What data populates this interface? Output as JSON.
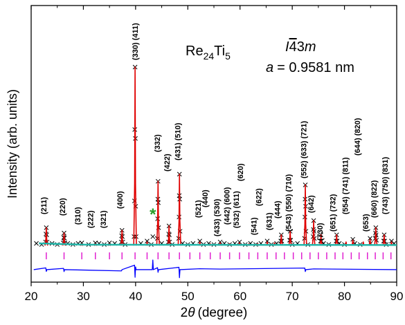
{
  "chart_data": {
    "type": "rietveld",
    "formula": [
      "Re",
      "24",
      "Ti",
      "5"
    ],
    "space_group": [
      "I",
      "4",
      "3",
      "m"
    ],
    "lattice": [
      "a",
      "= 0.9581 nm"
    ],
    "xlabel": [
      "2",
      "θ",
      "(degree)"
    ],
    "ylabel": "Intensity (arb. units)",
    "xlim": [
      20,
      90
    ],
    "ylim": [
      -20.5,
      134.5
    ],
    "xticks": [
      20,
      30,
      40,
      50,
      60,
      70,
      80,
      90
    ],
    "xminorticks": [
      25,
      35,
      45,
      55,
      65,
      75,
      85
    ],
    "observed": {
      "color": "#000000",
      "x": [
        22.75,
        22.83,
        22.9,
        22.97,
        23.05,
        26.15,
        26.23,
        26.3,
        26.37,
        26.45,
        37.25,
        37.33,
        37.4,
        37.47,
        37.55,
        39.7,
        39.78,
        39.84,
        39.9,
        39.96,
        40.02,
        40.1,
        44.15,
        44.22,
        44.26,
        44.3,
        44.35,
        44.4,
        46.27,
        46.34,
        46.4,
        46.46,
        46.53,
        48.25,
        48.32,
        48.36,
        48.4,
        48.45,
        48.52,
        67.8,
        67.9,
        68.0,
        69.5,
        69.6,
        69.7,
        72.35,
        72.42,
        72.46,
        72.5,
        72.55,
        72.62,
        74.0,
        74.05,
        74.1,
        74.16,
        74.22,
        75.4,
        75.5,
        75.6,
        78.4,
        78.5,
        78.6,
        85.9,
        85.95,
        86.0,
        86.06,
        86.12,
        87.5,
        87.6,
        87.7,
        29.7,
        32.3,
        35.0,
        42.2,
        43.3,
        52.3,
        56.2,
        59.9,
        65.2,
        81.6,
        84.9,
        89.0,
        21,
        22,
        24,
        25,
        27,
        28,
        29,
        31,
        33,
        34,
        36,
        38,
        41,
        43,
        45,
        47,
        49,
        50,
        51,
        53,
        54,
        55,
        57,
        58,
        59,
        61,
        62,
        63,
        64,
        66,
        67,
        70,
        71,
        73,
        76,
        77,
        79,
        80,
        82,
        83,
        85,
        88,
        89.5
      ],
      "values": [
        2,
        6.5,
        10,
        6,
        2,
        1.5,
        4.5,
        7,
        4.2,
        1.5,
        2,
        5.5,
        8.5,
        5,
        2,
        5,
        25,
        65,
        100,
        60,
        22,
        5,
        4,
        15,
        26,
        36,
        24,
        10,
        2,
        6.5,
        11,
        6,
        2,
        4,
        16,
        28,
        40,
        26,
        8,
        2.5,
        6,
        2.5,
        3,
        8,
        3,
        4,
        16,
        26,
        34,
        22,
        8,
        5,
        9,
        14,
        8,
        4,
        2.5,
        6,
        2.5,
        2.5,
        6,
        2.5,
        4,
        7,
        10,
        6,
        3,
        2.5,
        6,
        2.5,
        1.5,
        1.5,
        1.5,
        2.5,
        5,
        2.5,
        2,
        2,
        2.5,
        3.5,
        4,
        2.5,
        1.2,
        0.6,
        1.2,
        0.6,
        1.2,
        0.6,
        1.2,
        0.6,
        1.2,
        0.6,
        1.2,
        0.6,
        1.2,
        0.6,
        1.2,
        0.6,
        1.2,
        0.6,
        1.2,
        0.6,
        1.2,
        0.6,
        1.2,
        0.6,
        1.2,
        0.6,
        1.2,
        0.6,
        1.2,
        0.6,
        1.2,
        0.6,
        1.2,
        0.6,
        1.2,
        0.6,
        1.2,
        0.6,
        1.2,
        0.6,
        1.2,
        0.6,
        1.2
      ]
    },
    "calculated": {
      "color": "#e00000",
      "x": [
        22.9,
        26.3,
        29.7,
        32.3,
        35.0,
        37.4,
        39.9,
        42.2,
        44.3,
        46.4,
        48.4,
        52.3,
        54.3,
        56.2,
        58.0,
        59.9,
        61.7,
        63.4,
        65.2,
        66.6,
        67.9,
        69.6,
        72.5,
        74.1,
        75.5,
        78.5,
        80.3,
        81.6,
        83.6,
        84.9,
        86.0,
        87.6,
        89.0
      ],
      "values": [
        10,
        7,
        1,
        1,
        1,
        8.5,
        100,
        2,
        36,
        11,
        40,
        2,
        1,
        1.5,
        1,
        1.5,
        1,
        1,
        2,
        1.5,
        6,
        8,
        34,
        14,
        6,
        6,
        2,
        3,
        2,
        3.5,
        10,
        6,
        2
      ]
    },
    "background": {
      "color": "#1fb5a8",
      "x": [
        21.5,
        30,
        90
      ],
      "values": [
        1.2,
        0.5,
        0.3
      ]
    },
    "bragg_positions": {
      "color": "#e020d0",
      "x": [
        22.9,
        26.3,
        29.7,
        32.3,
        35.0,
        37.4,
        39.9,
        42.2,
        44.3,
        46.4,
        48.4,
        50.4,
        52.3,
        54.3,
        56.2,
        58.0,
        59.9,
        61.7,
        63.4,
        65.2,
        66.9,
        68.5,
        70.2,
        71.8,
        73.4,
        75.0,
        76.6,
        78.2,
        79.7,
        81.3,
        82.8,
        84.4,
        85.9,
        87.4,
        88.9
      ]
    },
    "difference": {
      "color": "#0000ff",
      "x": [
        20.5,
        22.8,
        22.9,
        23.0,
        26.2,
        26.3,
        26.4,
        37.3,
        37.4,
        39.8,
        39.9,
        40.0,
        40.1,
        43.2,
        43.3,
        43.4,
        44.2,
        44.3,
        44.4,
        48.3,
        48.4,
        48.5,
        52.3,
        56.2,
        72.4,
        72.5,
        72.6,
        74.1,
        90
      ],
      "values": [
        -13.5,
        -12.5,
        -14.5,
        -13.5,
        -12.8,
        -14.6,
        -13.5,
        -14.2,
        -13.5,
        -11,
        -17.8,
        -12,
        -13.5,
        -13.5,
        -8.1,
        -13.5,
        -12.4,
        -15,
        -13.5,
        -12.2,
        -18,
        -13.5,
        -13,
        -13.2,
        -12.6,
        -14.6,
        -13.5,
        -13.1,
        -13.5
      ]
    },
    "impurity_marker": {
      "text": "*",
      "x": 43.3,
      "color": "#2a9d2a"
    },
    "annotations": [
      {
        "x": 22.5,
        "text": "(211)"
      },
      {
        "x": 26.1,
        "text": "(220)"
      },
      {
        "x": 29.0,
        "text": "(310)"
      },
      {
        "x": 31.5,
        "text": "(222)"
      },
      {
        "x": 33.9,
        "text": "(321)"
      },
      {
        "x": 37.1,
        "text": "(400)"
      },
      {
        "x": 40.0,
        "text": "(330) (411)"
      },
      {
        "x": 44.3,
        "text": "(332)"
      },
      {
        "x": 46.1,
        "text": "(422)"
      },
      {
        "x": 48.2,
        "text": "(431) (510)"
      },
      {
        "x": 52.1,
        "text": "(521)"
      },
      {
        "x": 53.4,
        "text": "(440)"
      },
      {
        "x": 55.7,
        "text": "(433) (530)"
      },
      {
        "x": 57.6,
        "text": "(442) (600)"
      },
      {
        "x": 59.4,
        "text": "(532) (611)"
      },
      {
        "x": 60.2,
        "text": "(620)"
      },
      {
        "x": 62.8,
        "text": "(541)"
      },
      {
        "x": 63.7,
        "text": "(622)"
      },
      {
        "x": 65.7,
        "text": "(631)"
      },
      {
        "x": 67.3,
        "text": "(444)"
      },
      {
        "x": 69.4,
        "text": "(543) (550) (710)"
      },
      {
        "x": 72.3,
        "text": "(552) (633) (721)"
      },
      {
        "x": 73.7,
        "text": "(642)"
      },
      {
        "x": 75.4,
        "text": "(730)"
      },
      {
        "x": 77.9,
        "text": "(651) (732)"
      },
      {
        "x": 80.3,
        "text": "(554) (741) (811)"
      },
      {
        "x": 82.6,
        "text": "(644) (820)"
      },
      {
        "x": 84.2,
        "text": "(653)"
      },
      {
        "x": 85.8,
        "text": "(660) (822)"
      },
      {
        "x": 87.9,
        "text": "(743) (750) (831)"
      }
    ]
  }
}
